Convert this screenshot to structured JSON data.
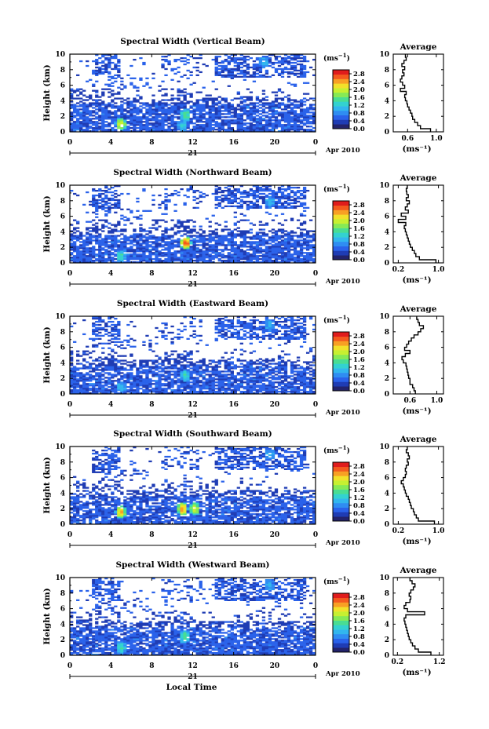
{
  "figure": {
    "bottom_label": "Local Time",
    "date_day": "21",
    "date_month": "Apr 2010",
    "colorbar": {
      "unit_label": "(ms",
      "unit_exp": "−1",
      "unit_close": ")",
      "tick_labels": [
        "2.8",
        "2.4",
        "2.0",
        "1.6",
        "1.2",
        "0.8",
        "0.4",
        "0.0"
      ],
      "colors": [
        "#23236b",
        "#1f3cb4",
        "#2a62ea",
        "#2f8df2",
        "#32b6ee",
        "#33d2d0",
        "#49dd93",
        "#86ea55",
        "#c7f031",
        "#f2e12a",
        "#f8a024",
        "#f45a1e",
        "#e01c1c"
      ]
    },
    "profile": {
      "title": "Average",
      "ylabel_ticks": [
        "0",
        "2",
        "4",
        "6",
        "8",
        "10"
      ]
    }
  },
  "chart_data": [
    {
      "type": "heatmap",
      "title": "Spectral Width (Vertical Beam)",
      "ylabel": "Height (km)",
      "xlabel": "Local Time",
      "x_ticks": [
        "0",
        "4",
        "8",
        "12",
        "16",
        "20",
        "0"
      ],
      "y_ticks": [
        "0",
        "2",
        "4",
        "6",
        "8",
        "10"
      ],
      "xlim": [
        0,
        24
      ],
      "ylim": [
        0,
        10
      ],
      "colorbar_range": [
        0.0,
        3.0
      ],
      "hotspots": [
        {
          "t": 5.0,
          "h": 1.0,
          "v": 2.0
        },
        {
          "t": 11.3,
          "h": 2.2,
          "v": 1.4
        },
        {
          "t": 11.0,
          "h": 0.8,
          "v": 1.1
        },
        {
          "t": 19.0,
          "h": 9.0,
          "v": 0.9
        }
      ],
      "profile": {
        "title": "Average",
        "x_ticks": [
          "0.6",
          "1.0"
        ],
        "xlim": [
          0.4,
          1.1
        ],
        "x_tick_values": [
          0.6,
          1.0
        ],
        "xlabel": "(ms⁻¹)",
        "heights": [
          0.2,
          0.6,
          1.0,
          1.4,
          1.8,
          2.2,
          2.6,
          3.0,
          3.4,
          3.8,
          4.2,
          4.6,
          5.0,
          5.4,
          5.8,
          6.2,
          6.6,
          7.0,
          7.4,
          7.8,
          8.2,
          8.6,
          9.0,
          9.4,
          9.8
        ],
        "values": [
          0.92,
          0.78,
          0.74,
          0.7,
          0.67,
          0.66,
          0.64,
          0.62,
          0.6,
          0.59,
          0.57,
          0.56,
          0.58,
          0.5,
          0.56,
          0.53,
          0.5,
          0.52,
          0.55,
          0.53,
          0.56,
          0.52,
          0.55,
          0.58,
          0.57
        ]
      }
    },
    {
      "type": "heatmap",
      "title": "Spectral Width (Northward Beam)",
      "ylabel": "Height (km)",
      "xlabel": "Local Time",
      "x_ticks": [
        "0",
        "4",
        "8",
        "12",
        "16",
        "20",
        "0"
      ],
      "y_ticks": [
        "0",
        "2",
        "4",
        "6",
        "8",
        "10"
      ],
      "xlim": [
        0,
        24
      ],
      "ylim": [
        0,
        10
      ],
      "colorbar_range": [
        0.0,
        3.0
      ],
      "hotspots": [
        {
          "t": 11.3,
          "h": 2.6,
          "v": 2.6
        },
        {
          "t": 5.0,
          "h": 0.9,
          "v": 1.2
        },
        {
          "t": 19.5,
          "h": 7.8,
          "v": 1.0
        }
      ],
      "profile": {
        "title": "Average",
        "x_ticks": [
          "0.2",
          "1.0"
        ],
        "xlim": [
          0.1,
          1.1
        ],
        "x_tick_values": [
          0.2,
          1.0
        ],
        "xlabel": "(ms⁻¹)",
        "heights": [
          0.2,
          0.6,
          1.0,
          1.4,
          1.8,
          2.2,
          2.6,
          3.0,
          3.4,
          3.8,
          4.2,
          4.6,
          5.0,
          5.4,
          5.8,
          6.2,
          6.6,
          7.0,
          7.4,
          7.8,
          8.2,
          8.6,
          9.0,
          9.4,
          9.8
        ],
        "values": [
          0.95,
          0.62,
          0.55,
          0.52,
          0.48,
          0.44,
          0.42,
          0.4,
          0.38,
          0.36,
          0.34,
          0.32,
          0.35,
          0.2,
          0.35,
          0.26,
          0.4,
          0.34,
          0.38,
          0.42,
          0.36,
          0.4,
          0.37,
          0.36,
          0.38
        ]
      }
    },
    {
      "type": "heatmap",
      "title": "Spectral Width (Eastward Beam)",
      "ylabel": "Height (km)",
      "xlabel": "Local Time",
      "x_ticks": [
        "0",
        "4",
        "8",
        "12",
        "16",
        "20",
        "0"
      ],
      "y_ticks": [
        "0",
        "2",
        "4",
        "6",
        "8",
        "10"
      ],
      "xlim": [
        0,
        24
      ],
      "ylim": [
        0,
        10
      ],
      "colorbar_range": [
        0.0,
        3.0
      ],
      "hotspots": [
        {
          "t": 11.3,
          "h": 2.4,
          "v": 1.2
        },
        {
          "t": 5.0,
          "h": 0.9,
          "v": 1.0
        },
        {
          "t": 19.5,
          "h": 8.8,
          "v": 0.9
        }
      ],
      "profile": {
        "title": "Average",
        "x_ticks": [
          "0.6",
          "1.0"
        ],
        "xlim": [
          0.35,
          1.1
        ],
        "x_tick_values": [
          0.6,
          1.0
        ],
        "xlabel": "(ms⁻¹)",
        "heights": [
          0.2,
          0.6,
          1.0,
          1.4,
          1.8,
          2.2,
          2.6,
          3.0,
          3.4,
          3.8,
          4.2,
          4.6,
          5.0,
          5.4,
          5.8,
          6.2,
          6.6,
          7.0,
          7.4,
          7.8,
          8.2,
          8.6,
          9.0,
          9.4,
          9.8
        ],
        "values": [
          0.68,
          0.66,
          0.64,
          0.6,
          0.6,
          0.58,
          0.57,
          0.56,
          0.55,
          0.54,
          0.5,
          0.48,
          0.53,
          0.6,
          0.52,
          0.55,
          0.58,
          0.62,
          0.66,
          0.72,
          0.76,
          0.8,
          0.74,
          0.72,
          0.7
        ]
      }
    },
    {
      "type": "heatmap",
      "title": "Spectral Width (Southward Beam)",
      "ylabel": "Height (km)",
      "xlabel": "Local Time",
      "x_ticks": [
        "0",
        "4",
        "8",
        "12",
        "16",
        "20",
        "0"
      ],
      "y_ticks": [
        "0",
        "2",
        "4",
        "6",
        "8",
        "10"
      ],
      "xlim": [
        0,
        24
      ],
      "ylim": [
        0,
        10
      ],
      "colorbar_range": [
        0.0,
        3.0
      ],
      "hotspots": [
        {
          "t": 5.0,
          "h": 1.6,
          "v": 2.2
        },
        {
          "t": 11.0,
          "h": 2.0,
          "v": 2.3
        },
        {
          "t": 12.2,
          "h": 2.0,
          "v": 2.0
        },
        {
          "t": 19.5,
          "h": 9.0,
          "v": 0.9
        }
      ],
      "profile": {
        "title": "Average",
        "x_ticks": [
          "0.2",
          "1.0"
        ],
        "xlim": [
          0.1,
          1.1
        ],
        "x_tick_values": [
          0.2,
          1.0
        ],
        "xlabel": "(ms⁻¹)",
        "heights": [
          0.2,
          0.6,
          1.0,
          1.4,
          1.8,
          2.2,
          2.6,
          3.0,
          3.4,
          3.8,
          4.2,
          4.6,
          5.0,
          5.4,
          5.8,
          6.2,
          6.6,
          7.0,
          7.4,
          7.8,
          8.2,
          8.6,
          9.0,
          9.4,
          9.8
        ],
        "values": [
          0.92,
          0.6,
          0.56,
          0.52,
          0.5,
          0.46,
          0.44,
          0.42,
          0.4,
          0.36,
          0.34,
          0.32,
          0.3,
          0.26,
          0.3,
          0.34,
          0.36,
          0.34,
          0.36,
          0.4,
          0.38,
          0.42,
          0.4,
          0.36,
          0.38
        ]
      }
    },
    {
      "type": "heatmap",
      "title": "Spectral Width (Westward Beam)",
      "ylabel": "Height (km)",
      "xlabel": "Local Time",
      "x_ticks": [
        "0",
        "4",
        "8",
        "12",
        "16",
        "20",
        "0"
      ],
      "y_ticks": [
        "0",
        "2",
        "4",
        "6",
        "8",
        "10"
      ],
      "xlim": [
        0,
        24
      ],
      "ylim": [
        0,
        10
      ],
      "colorbar_range": [
        0.0,
        3.0
      ],
      "hotspots": [
        {
          "t": 11.2,
          "h": 2.4,
          "v": 1.4
        },
        {
          "t": 5.0,
          "h": 1.0,
          "v": 1.3
        },
        {
          "t": 19.5,
          "h": 9.0,
          "v": 0.9
        }
      ],
      "profile": {
        "title": "Average",
        "x_ticks": [
          "0.2",
          "1.2"
        ],
        "xlim": [
          0.1,
          1.3
        ],
        "x_tick_values": [
          0.2,
          1.2
        ],
        "xlabel": "(ms⁻¹)",
        "heights": [
          0.2,
          0.6,
          1.0,
          1.4,
          1.8,
          2.2,
          2.6,
          3.0,
          3.4,
          3.8,
          4.2,
          4.6,
          5.0,
          5.4,
          5.8,
          6.2,
          6.6,
          7.0,
          7.4,
          7.8,
          8.2,
          8.6,
          9.0,
          9.4,
          9.8
        ],
        "values": [
          1.0,
          0.7,
          0.62,
          0.56,
          0.52,
          0.48,
          0.46,
          0.44,
          0.42,
          0.4,
          0.38,
          0.36,
          0.4,
          0.85,
          0.44,
          0.36,
          0.4,
          0.5,
          0.52,
          0.48,
          0.52,
          0.58,
          0.62,
          0.55,
          0.5
        ]
      }
    }
  ]
}
